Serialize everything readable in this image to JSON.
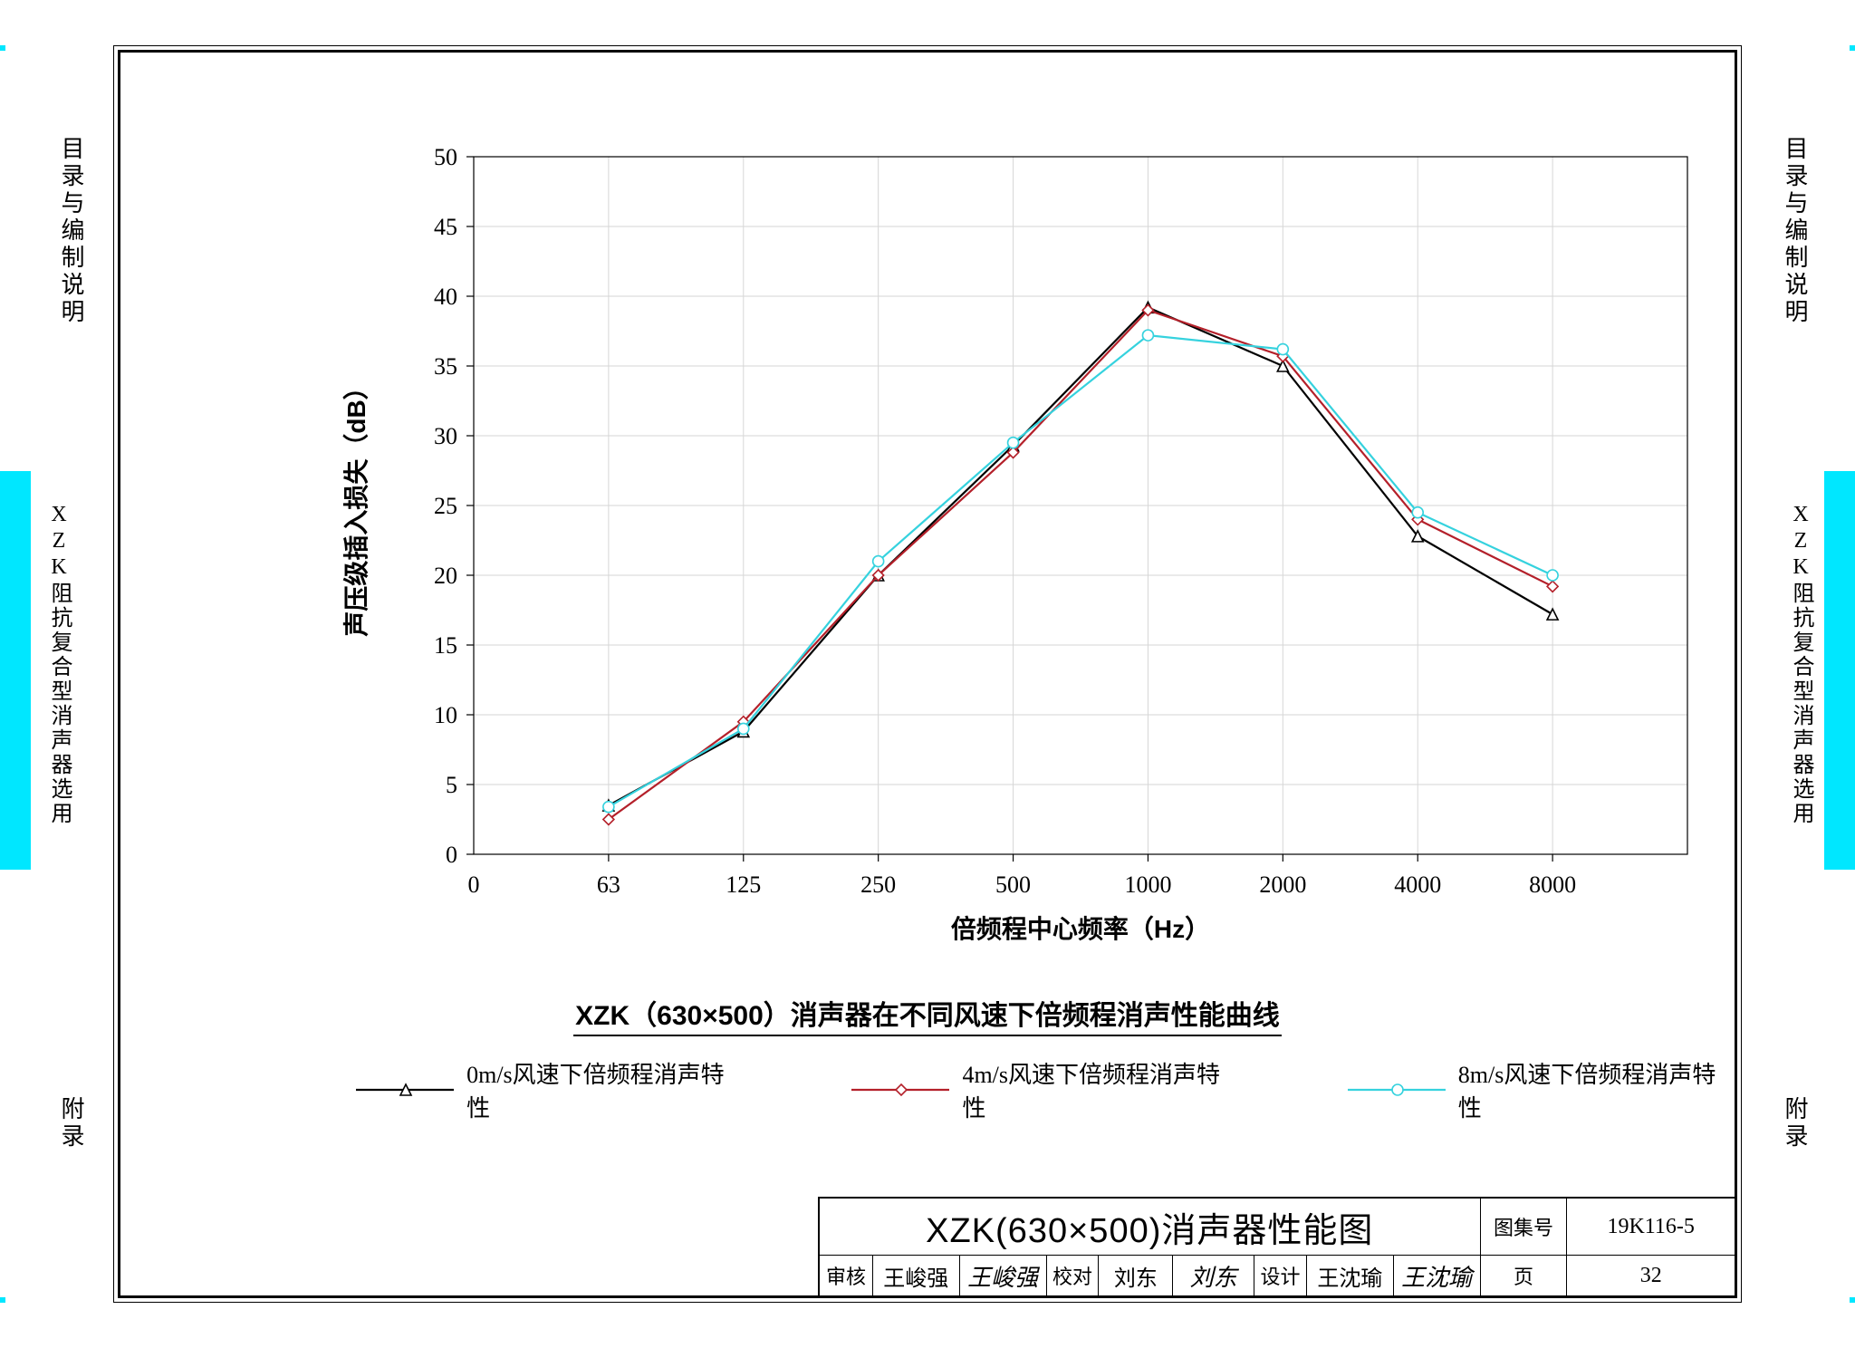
{
  "frame": {
    "outer_cyan": "#00e7ff",
    "border_color": "#000000",
    "background": "#ffffff"
  },
  "side_labels": {
    "top": "目录与编制说明",
    "mid": "XZK阻抗复合型消声器选用",
    "bottom": "附录"
  },
  "chart": {
    "type": "line",
    "ylabel": "声压级插入损失（dB）",
    "xlabel": "倍频程中心频率（Hz）",
    "ylim": [
      0,
      50
    ],
    "ytick_step": 5,
    "x_categories": [
      "63",
      "125",
      "250",
      "500",
      "1000",
      "2000",
      "4000",
      "8000"
    ],
    "x_leading_zero_label": "0",
    "grid_color": "#d6d6d6",
    "axis_color": "#000000",
    "label_fontsize": 28,
    "tick_fontsize": 26,
    "line_width": 2.2,
    "marker_size": 6,
    "series": [
      {
        "name": "0m/s风速下倍频程消声特性",
        "color": "#000000",
        "marker": "triangle",
        "values": [
          3.5,
          8.8,
          20.0,
          29.3,
          39.2,
          35.0,
          22.8,
          17.2
        ]
      },
      {
        "name": "4m/s风速下倍频程消声特性",
        "color": "#b4202a",
        "marker": "diamond",
        "values": [
          2.5,
          9.5,
          20.0,
          28.8,
          39.0,
          35.7,
          24.0,
          19.2
        ]
      },
      {
        "name": "8m/s风速下倍频程消声特性",
        "color": "#35d2de",
        "marker": "circle",
        "values": [
          3.4,
          9.0,
          21.0,
          29.5,
          37.2,
          36.2,
          24.5,
          20.0
        ]
      }
    ]
  },
  "caption": "XZK（630×500）消声器在不同风速下倍频程消声性能曲线",
  "title_block": {
    "big_title": "XZK(630×500)消声器性能图",
    "set_no_label": "图集号",
    "set_no": "19K116-5",
    "page_label": "页",
    "page_no": "32",
    "review_label": "审核",
    "reviewer": "王峻强",
    "check_label": "校对",
    "checker": "刘东",
    "design_label": "设计",
    "designer": "王沈瑜",
    "reviewer_sig": "王峻强",
    "checker_sig": "刘东",
    "designer_sig": "王沈瑜"
  }
}
